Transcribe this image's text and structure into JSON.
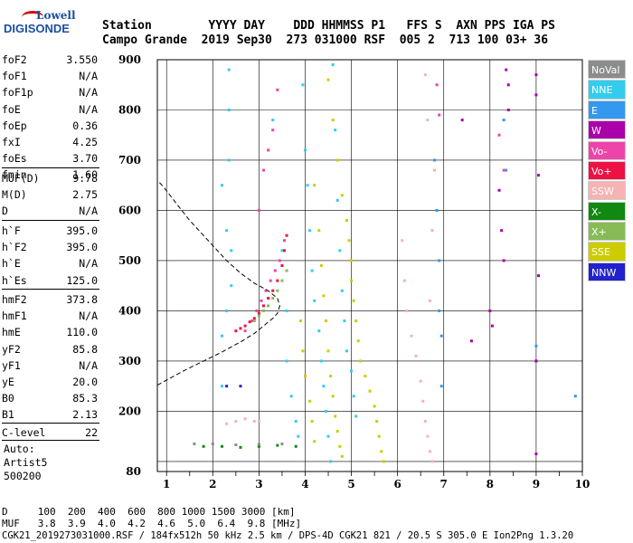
{
  "logo": {
    "line1": "Lowell",
    "line2": "DIGISONDE"
  },
  "header": {
    "row1": "Station        YYYY DAY    DDD HHMMSS P1   FFS S  AXN PPS IGA PS",
    "row2": "Campo Grande  2019 Sep30  273 031000 RSF  005 2  713 100 03+ 36"
  },
  "params_group1": [
    {
      "label": "foF2",
      "value": "3.550"
    },
    {
      "label": "foF1",
      "value": "N/A"
    },
    {
      "label": "foF1p",
      "value": "N/A"
    },
    {
      "label": "foE",
      "value": "N/A"
    },
    {
      "label": "foEp",
      "value": "0.36"
    },
    {
      "label": "fxI",
      "value": "4.25"
    },
    {
      "label": "foEs",
      "value": "3.70"
    },
    {
      "label": "fmin",
      "value": "1.60"
    }
  ],
  "params_group2": [
    {
      "label": "MUF(D)",
      "value": "9.78"
    },
    {
      "label": "M(D)",
      "value": "2.75"
    },
    {
      "label": "D",
      "value": "N/A"
    }
  ],
  "params_group3": [
    {
      "label": "h`F",
      "value": "395.0"
    },
    {
      "label": "h`F2",
      "value": "395.0"
    },
    {
      "label": "h`E",
      "value": "N/A"
    },
    {
      "label": "h`Es",
      "value": "125.0"
    }
  ],
  "params_group4": [
    {
      "label": "hmF2",
      "value": "373.8"
    },
    {
      "label": "hmF1",
      "value": "N/A"
    },
    {
      "label": "hmE",
      "value": "110.0"
    },
    {
      "label": "yF2",
      "value": "85.8"
    },
    {
      "label": "yF1",
      "value": "N/A"
    },
    {
      "label": "yE",
      "value": "20.0"
    },
    {
      "label": "B0",
      "value": "85.3"
    },
    {
      "label": "B1",
      "value": "2.13"
    }
  ],
  "params_group5": [
    {
      "label": "C-level",
      "value": "22"
    }
  ],
  "autoscaling": {
    "line1": "Auto:",
    "line2": "Artist5",
    "line3": "500200"
  },
  "legend": [
    {
      "label": "NoVal",
      "color": "#8c8c8c"
    },
    {
      "label": "NNE",
      "color": "#33ccee"
    },
    {
      "label": "E",
      "color": "#3399ee"
    },
    {
      "label": "W",
      "color": "#aa00aa"
    },
    {
      "label": "Vo-",
      "color": "#ee44aa"
    },
    {
      "label": "Vo+",
      "color": "#ee1144"
    },
    {
      "label": "SSW",
      "color": "#f5b3b3"
    },
    {
      "label": "X-",
      "color": "#118811"
    },
    {
      "label": "X+",
      "color": "#88bb55"
    },
    {
      "label": "SSE",
      "color": "#cccc00"
    },
    {
      "label": "NNW",
      "color": "#2222cc"
    }
  ],
  "bottom": {
    "d_row": "D     100  200  400  600  800 1000 1500 3000 [km]",
    "muf_row": "MUF   3.8  3.9  4.0  4.2  4.6  5.0  6.4  9.8 [MHz]",
    "footer": "CGK21_2019273031000.RSF / 184fx512h 50 kHz 2.5 km / DPS-4D CGK21 821 / 20.5 S 305.0 E Ion2Png 1.3.20"
  },
  "chart_data": {
    "type": "scatter",
    "title": "",
    "xlabel": "",
    "ylabel": "",
    "xlim": [
      0.8,
      10
    ],
    "ylim": [
      80,
      900
    ],
    "x_ticks": [
      1,
      2,
      3,
      4,
      5,
      6,
      7,
      8,
      9,
      10
    ],
    "y_ticks": [
      80,
      100,
      200,
      300,
      400,
      500,
      600,
      700,
      800,
      900
    ],
    "y_tick_labels": [
      "80",
      "",
      "200",
      "300",
      "400",
      "500",
      "600",
      "700",
      "800",
      "900"
    ],
    "grid": true,
    "series": [
      {
        "name": "NNE",
        "color": "#33ccee",
        "points": [
          [
            2.2,
            250
          ],
          [
            2.2,
            350
          ],
          [
            2.3,
            400
          ],
          [
            2.4,
            450
          ],
          [
            2.4,
            520
          ],
          [
            2.3,
            560
          ],
          [
            2.2,
            650
          ],
          [
            2.35,
            700
          ],
          [
            2.35,
            800
          ],
          [
            2.35,
            880
          ],
          [
            3.3,
            780
          ],
          [
            3.5,
            520
          ],
          [
            3.6,
            400
          ],
          [
            3.6,
            300
          ],
          [
            3.7,
            230
          ],
          [
            3.8,
            180
          ],
          [
            3.85,
            150
          ],
          [
            3.95,
            850
          ],
          [
            4.0,
            720
          ],
          [
            4.05,
            650
          ],
          [
            4.1,
            560
          ],
          [
            4.15,
            480
          ],
          [
            4.2,
            420
          ],
          [
            4.3,
            360
          ],
          [
            4.35,
            300
          ],
          [
            4.4,
            250
          ],
          [
            4.45,
            200
          ],
          [
            4.5,
            150
          ],
          [
            4.55,
            100
          ],
          [
            4.6,
            890
          ],
          [
            4.65,
            760
          ],
          [
            4.7,
            620
          ],
          [
            4.75,
            520
          ],
          [
            4.8,
            440
          ],
          [
            4.85,
            380
          ],
          [
            4.9,
            320
          ],
          [
            5.0,
            280
          ],
          [
            5.05,
            230
          ],
          [
            5.1,
            190
          ]
        ]
      },
      {
        "name": "E",
        "color": "#3399ee",
        "points": [
          [
            6.8,
            700
          ],
          [
            6.85,
            600
          ],
          [
            6.9,
            500
          ],
          [
            6.9,
            400
          ],
          [
            6.95,
            350
          ],
          [
            6.95,
            250
          ],
          [
            8.3,
            780
          ],
          [
            8.35,
            680
          ],
          [
            9.0,
            330
          ],
          [
            9.0,
            300
          ],
          [
            9.85,
            230
          ]
        ]
      },
      {
        "name": "W",
        "color": "#aa00aa",
        "points": [
          [
            8.0,
            400
          ],
          [
            8.05,
            370
          ],
          [
            8.2,
            640
          ],
          [
            8.25,
            560
          ],
          [
            8.3,
            500
          ],
          [
            8.35,
            880
          ],
          [
            8.4,
            850
          ],
          [
            8.4,
            800
          ],
          [
            9.0,
            870
          ],
          [
            9.0,
            830
          ],
          [
            9.05,
            670
          ],
          [
            9.05,
            470
          ],
          [
            9.0,
            300
          ],
          [
            9.0,
            115
          ],
          [
            7.4,
            780
          ],
          [
            7.6,
            340
          ]
        ]
      },
      {
        "name": "Vo-",
        "color": "#ee44aa",
        "points": [
          [
            2.7,
            360
          ],
          [
            2.85,
            380
          ],
          [
            2.95,
            400
          ],
          [
            3.05,
            420
          ],
          [
            3.15,
            440
          ],
          [
            3.25,
            460
          ],
          [
            3.35,
            480
          ],
          [
            3.45,
            500
          ],
          [
            3.55,
            540
          ],
          [
            3.0,
            600
          ],
          [
            3.1,
            680
          ],
          [
            3.2,
            720
          ],
          [
            3.3,
            760
          ],
          [
            3.4,
            840
          ],
          [
            6.85,
            850
          ],
          [
            6.9,
            790
          ],
          [
            8.2,
            750
          ],
          [
            8.3,
            680
          ]
        ]
      },
      {
        "name": "Vo+",
        "color": "#ee1144",
        "points": [
          [
            2.5,
            360
          ],
          [
            2.6,
            365
          ],
          [
            2.7,
            370
          ],
          [
            2.8,
            378
          ],
          [
            2.9,
            385
          ],
          [
            3.0,
            395
          ],
          [
            3.1,
            410
          ],
          [
            3.2,
            425
          ],
          [
            3.3,
            440
          ],
          [
            3.4,
            460
          ],
          [
            3.5,
            490
          ],
          [
            3.55,
            520
          ],
          [
            3.6,
            550
          ]
        ]
      },
      {
        "name": "SSW",
        "color": "#f5b3b3",
        "points": [
          [
            2.3,
            175
          ],
          [
            2.5,
            180
          ],
          [
            2.7,
            185
          ],
          [
            2.9,
            180
          ],
          [
            3.0,
            180
          ],
          [
            6.1,
            540
          ],
          [
            6.15,
            460
          ],
          [
            6.2,
            400
          ],
          [
            6.3,
            350
          ],
          [
            6.4,
            310
          ],
          [
            6.5,
            260
          ],
          [
            6.55,
            220
          ],
          [
            6.6,
            180
          ],
          [
            6.65,
            150
          ],
          [
            6.7,
            120
          ],
          [
            6.75,
            100
          ],
          [
            6.7,
            420
          ],
          [
            6.75,
            560
          ],
          [
            6.8,
            680
          ],
          [
            6.65,
            780
          ],
          [
            6.6,
            870
          ]
        ]
      },
      {
        "name": "X-",
        "color": "#118811",
        "points": [
          [
            1.8,
            130
          ],
          [
            2.2,
            130
          ],
          [
            2.6,
            128
          ],
          [
            3.0,
            130
          ],
          [
            3.4,
            132
          ],
          [
            3.8,
            130
          ]
        ]
      },
      {
        "name": "X+",
        "color": "#88bb55",
        "points": [
          [
            2.9,
            380
          ],
          [
            3.0,
            390
          ],
          [
            3.1,
            400
          ],
          [
            3.2,
            410
          ],
          [
            3.3,
            425
          ],
          [
            3.4,
            440
          ],
          [
            3.5,
            460
          ],
          [
            3.6,
            480
          ]
        ]
      },
      {
        "name": "SSE",
        "color": "#cccc00",
        "points": [
          [
            4.5,
            860
          ],
          [
            4.6,
            780
          ],
          [
            4.7,
            700
          ],
          [
            4.8,
            630
          ],
          [
            4.9,
            580
          ],
          [
            4.95,
            540
          ],
          [
            5.0,
            500
          ],
          [
            5.0,
            460
          ],
          [
            5.05,
            420
          ],
          [
            5.1,
            380
          ],
          [
            5.15,
            340
          ],
          [
            5.2,
            300
          ],
          [
            5.3,
            270
          ],
          [
            5.4,
            240
          ],
          [
            5.5,
            210
          ],
          [
            5.55,
            180
          ],
          [
            5.6,
            150
          ],
          [
            5.65,
            120
          ],
          [
            5.7,
            100
          ],
          [
            4.2,
            650
          ],
          [
            4.3,
            560
          ],
          [
            4.35,
            490
          ],
          [
            4.4,
            430
          ],
          [
            4.45,
            380
          ],
          [
            4.5,
            320
          ],
          [
            4.55,
            270
          ],
          [
            4.6,
            230
          ],
          [
            4.65,
            190
          ],
          [
            4.7,
            160
          ],
          [
            4.75,
            130
          ],
          [
            4.8,
            110
          ],
          [
            3.9,
            380
          ],
          [
            3.95,
            320
          ],
          [
            4.0,
            270
          ],
          [
            4.1,
            220
          ],
          [
            4.15,
            180
          ],
          [
            4.2,
            140
          ]
        ]
      },
      {
        "name": "NoVal",
        "color": "#8c8c8c",
        "points": [
          [
            1.6,
            135
          ],
          [
            2.0,
            135
          ],
          [
            2.5,
            133
          ],
          [
            3.0,
            134
          ],
          [
            3.5,
            135
          ]
        ]
      },
      {
        "name": "NNW",
        "color": "#2222cc",
        "points": [
          [
            2.3,
            250
          ],
          [
            2.6,
            250
          ]
        ]
      }
    ],
    "profile": {
      "name": "E-density profile",
      "points": [
        [
          0.8,
          252
        ],
        [
          1.0,
          262
        ],
        [
          1.4,
          282
        ],
        [
          1.8,
          300
        ],
        [
          2.2,
          318
        ],
        [
          2.6,
          338
        ],
        [
          2.9,
          355
        ],
        [
          3.1,
          370
        ],
        [
          3.3,
          385
        ],
        [
          3.4,
          395
        ],
        [
          3.45,
          410
        ],
        [
          3.4,
          425
        ],
        [
          3.2,
          440
        ],
        [
          2.9,
          455
        ],
        [
          2.6,
          475
        ],
        [
          2.3,
          500
        ],
        [
          1.9,
          540
        ],
        [
          1.5,
          580
        ],
        [
          1.2,
          615
        ],
        [
          0.95,
          645
        ],
        [
          0.8,
          660
        ]
      ]
    }
  }
}
